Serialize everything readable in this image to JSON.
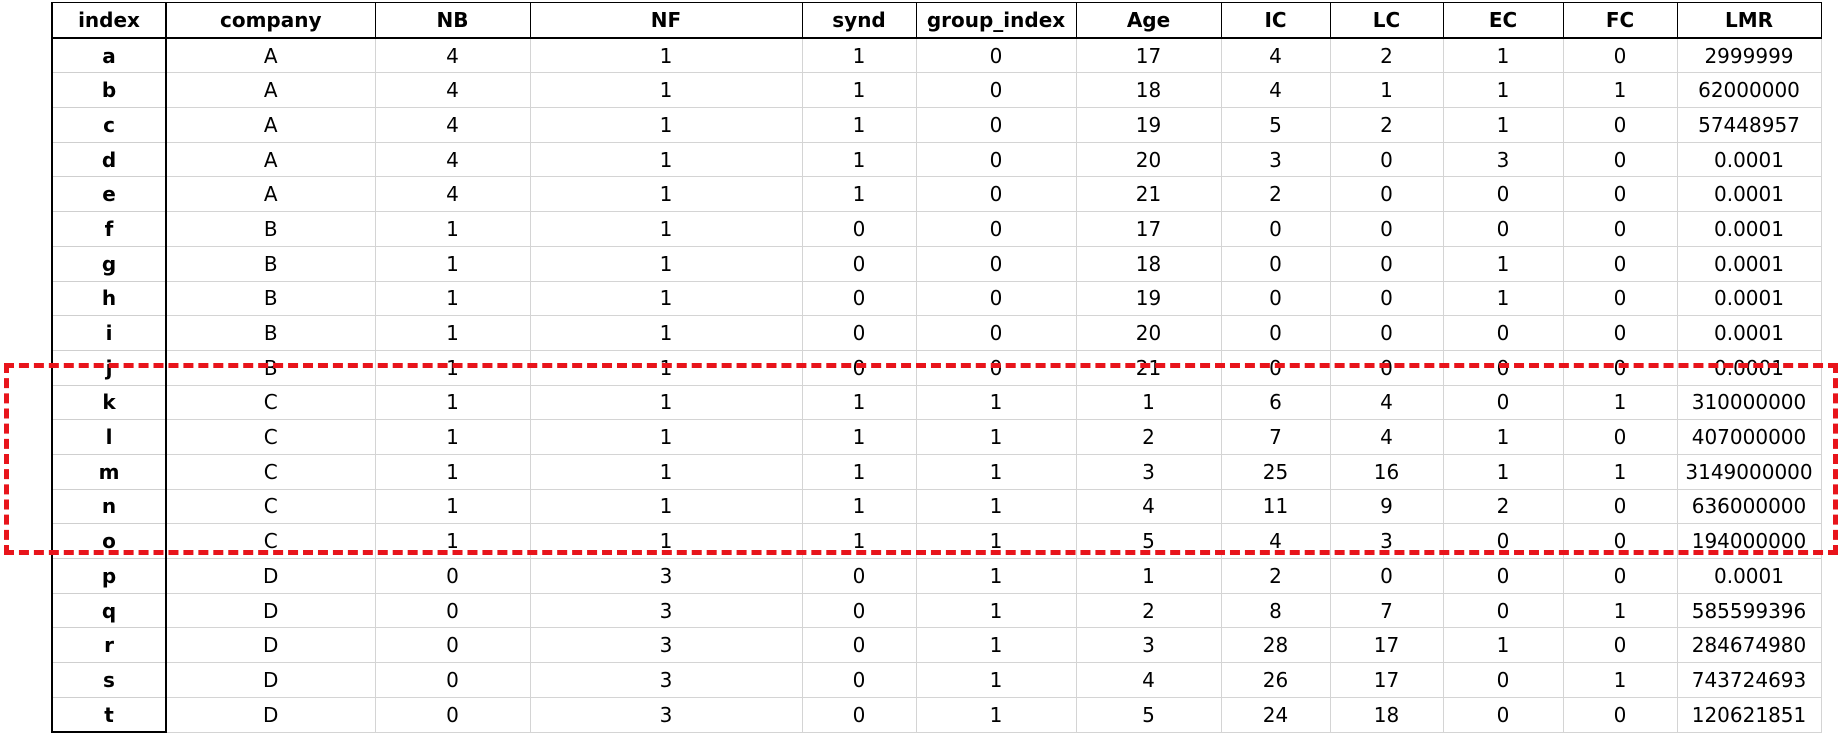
{
  "columns": [
    "index",
    "company",
    "NB",
    "NF",
    "synd",
    "group_index",
    "Age",
    "IC",
    "LC",
    "EC",
    "FC",
    "LMR"
  ],
  "rows": [
    [
      "a",
      "A",
      "4",
      "1",
      "1",
      "0",
      "17",
      "4",
      "2",
      "1",
      "0",
      "2999999"
    ],
    [
      "b",
      "A",
      "4",
      "1",
      "1",
      "0",
      "18",
      "4",
      "1",
      "1",
      "1",
      "62000000"
    ],
    [
      "c",
      "A",
      "4",
      "1",
      "1",
      "0",
      "19",
      "5",
      "2",
      "1",
      "0",
      "57448957"
    ],
    [
      "d",
      "A",
      "4",
      "1",
      "1",
      "0",
      "20",
      "3",
      "0",
      "3",
      "0",
      "0.0001"
    ],
    [
      "e",
      "A",
      "4",
      "1",
      "1",
      "0",
      "21",
      "2",
      "0",
      "0",
      "0",
      "0.0001"
    ],
    [
      "f",
      "B",
      "1",
      "1",
      "0",
      "0",
      "17",
      "0",
      "0",
      "0",
      "0",
      "0.0001"
    ],
    [
      "g",
      "B",
      "1",
      "1",
      "0",
      "0",
      "18",
      "0",
      "0",
      "1",
      "0",
      "0.0001"
    ],
    [
      "h",
      "B",
      "1",
      "1",
      "0",
      "0",
      "19",
      "0",
      "0",
      "1",
      "0",
      "0.0001"
    ],
    [
      "i",
      "B",
      "1",
      "1",
      "0",
      "0",
      "20",
      "0",
      "0",
      "0",
      "0",
      "0.0001"
    ],
    [
      "j",
      "B",
      "1",
      "1",
      "0",
      "0",
      "21",
      "0",
      "0",
      "0",
      "0",
      "0.0001"
    ],
    [
      "k",
      "C",
      "1",
      "1",
      "1",
      "1",
      "1",
      "6",
      "4",
      "0",
      "1",
      "310000000"
    ],
    [
      "l",
      "C",
      "1",
      "1",
      "1",
      "1",
      "2",
      "7",
      "4",
      "1",
      "0",
      "407000000"
    ],
    [
      "m",
      "C",
      "1",
      "1",
      "1",
      "1",
      "3",
      "25",
      "16",
      "1",
      "1",
      "3149000000"
    ],
    [
      "n",
      "C",
      "1",
      "1",
      "1",
      "1",
      "4",
      "11",
      "9",
      "2",
      "0",
      "636000000"
    ],
    [
      "o",
      "C",
      "1",
      "1",
      "1",
      "1",
      "5",
      "4",
      "3",
      "0",
      "0",
      "194000000"
    ],
    [
      "p",
      "D",
      "0",
      "3",
      "0",
      "1",
      "1",
      "2",
      "0",
      "0",
      "0",
      "0.0001"
    ],
    [
      "q",
      "D",
      "0",
      "3",
      "0",
      "1",
      "2",
      "8",
      "7",
      "0",
      "1",
      "585599396"
    ],
    [
      "r",
      "D",
      "0",
      "3",
      "0",
      "1",
      "3",
      "28",
      "17",
      "1",
      "0",
      "284674980"
    ],
    [
      "s",
      "D",
      "0",
      "3",
      "0",
      "1",
      "4",
      "26",
      "17",
      "0",
      "1",
      "743724693"
    ],
    [
      "t",
      "D",
      "0",
      "3",
      "0",
      "1",
      "5",
      "24",
      "18",
      "0",
      "0",
      "120621851"
    ]
  ],
  "highlight": {
    "rows": [
      "k",
      "l",
      "m",
      "n",
      "o"
    ],
    "color": "#e8141b",
    "style": "dashed"
  }
}
